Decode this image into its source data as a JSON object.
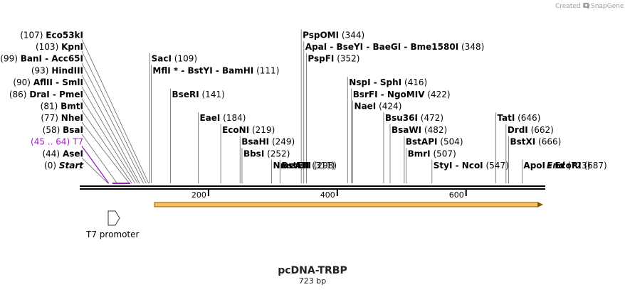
{
  "branding": {
    "created_by": "Created by",
    "app": "SnapGene"
  },
  "plasmid": {
    "name": "pcDNA-TRBP",
    "length_label": "723 bp",
    "length": 723
  },
  "ruler": {
    "ticks": [
      200,
      400,
      600
    ]
  },
  "features": [
    {
      "name": "T7 promoter",
      "type": "promoter",
      "start": 45,
      "end": 64
    }
  ],
  "sites": [
    {
      "pos": "(0)",
      "name": "Start",
      "loc": 0,
      "style": "ital",
      "row": 0,
      "side": "left"
    },
    {
      "pos": "(44)",
      "name": "AseI",
      "loc": 44,
      "row": 1,
      "side": "left"
    },
    {
      "pos": "(45 .. 64)",
      "name": "T7",
      "loc": 45,
      "row": 2,
      "side": "left",
      "style": "purple"
    },
    {
      "pos": "(58)",
      "name": "BsaI",
      "loc": 58,
      "row": 3,
      "side": "left"
    },
    {
      "pos": "(77)",
      "name": "NheI",
      "loc": 77,
      "row": 4,
      "side": "left"
    },
    {
      "pos": "(81)",
      "name": "BmtI",
      "loc": 81,
      "row": 5,
      "side": "left"
    },
    {
      "pos": "(86)",
      "name": "DraI  - PmeI",
      "loc": 86,
      "row": 6,
      "side": "left"
    },
    {
      "pos": "(90)",
      "name": "AflII  - SmlI",
      "loc": 90,
      "row": 7,
      "side": "left"
    },
    {
      "pos": "(93)",
      "name": "HindIII",
      "loc": 93,
      "row": 8,
      "side": "left"
    },
    {
      "pos": "(99)",
      "name": "BanI  - Acc65I",
      "loc": 99,
      "row": 9,
      "side": "left"
    },
    {
      "pos": "(103)",
      "name": "KpnI",
      "loc": 103,
      "row": 10,
      "side": "left"
    },
    {
      "pos": "(107)",
      "name": "Eco53kI",
      "loc": 107,
      "row": 11,
      "side": "left"
    },
    {
      "pos": "(109)",
      "name": "SacI",
      "loc": 109,
      "row": 9,
      "side": "right"
    },
    {
      "pos": "(111)",
      "name": "MflI *  - BstYI  - BamHI",
      "loc": 111,
      "row": 8,
      "side": "right"
    },
    {
      "pos": "(141)",
      "name": "BseRI",
      "loc": 141,
      "row": 6,
      "side": "right"
    },
    {
      "pos": "(184)",
      "name": "EaeI",
      "loc": 184,
      "row": 4,
      "side": "right"
    },
    {
      "pos": "(219)",
      "name": "EcoNI",
      "loc": 219,
      "row": 3,
      "side": "right"
    },
    {
      "pos": "(249)",
      "name": "BsaHI",
      "loc": 249,
      "row": 2,
      "side": "right"
    },
    {
      "pos": "(252)",
      "name": "BbsI",
      "loc": 252,
      "row": 1,
      "side": "right"
    },
    {
      "pos": "(298)",
      "name": "NmeAIII",
      "loc": 298,
      "row": 0,
      "side": "right"
    },
    {
      "pos": "(311)",
      "name": "BstEII",
      "loc": 311,
      "row": -1,
      "side": "right"
    },
    {
      "pos": "(344)",
      "name": "PspOMI",
      "loc": 344,
      "row": 11,
      "side": "right"
    },
    {
      "pos": "(348)",
      "name": "ApaI  - BseYI  - BaeGI  - Bme1580I",
      "loc": 348,
      "row": 10,
      "side": "right"
    },
    {
      "pos": "(352)",
      "name": "PspFI",
      "loc": 352,
      "row": 9,
      "side": "right"
    },
    {
      "pos": "(416)",
      "name": "NspI  - SphI",
      "loc": 416,
      "row": 7,
      "side": "right"
    },
    {
      "pos": "(422)",
      "name": "BsrFI  - NgoMIV",
      "loc": 422,
      "row": 6,
      "side": "right"
    },
    {
      "pos": "(424)",
      "name": "NaeI",
      "loc": 424,
      "row": 5,
      "side": "right"
    },
    {
      "pos": "(472)",
      "name": "Bsu36I",
      "loc": 472,
      "row": 4,
      "side": "right"
    },
    {
      "pos": "(482)",
      "name": "BsaWI",
      "loc": 482,
      "row": 3,
      "side": "right"
    },
    {
      "pos": "(504)",
      "name": "BstAPI",
      "loc": 504,
      "row": 2,
      "side": "right"
    },
    {
      "pos": "(507)",
      "name": "BmrI",
      "loc": 507,
      "row": 1,
      "side": "right"
    },
    {
      "pos": "(547)",
      "name": "StyI  - NcoI",
      "loc": 547,
      "row": -1,
      "side": "right"
    },
    {
      "pos": "(646)",
      "name": "TatI",
      "loc": 646,
      "row": 4,
      "side": "right"
    },
    {
      "pos": "(662)",
      "name": "DrdI",
      "loc": 662,
      "row": 3,
      "side": "right"
    },
    {
      "pos": "(666)",
      "name": "BstXI",
      "loc": 666,
      "row": 2,
      "side": "right"
    },
    {
      "pos": "(687)",
      "name": "ApoI  - EcoRI",
      "loc": 687,
      "row": 0,
      "side": "right"
    },
    {
      "pos": "(723)",
      "name": "End",
      "loc": 723,
      "style": "ital",
      "row": -1,
      "side": "right"
    }
  ]
}
